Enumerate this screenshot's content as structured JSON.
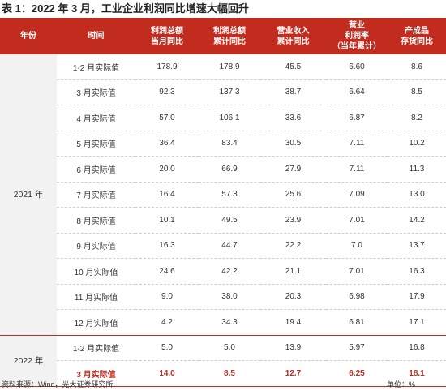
{
  "title": "表 1：2022 年 3 月，工业企业利润同比增速大幅回升",
  "headers": [
    "年份",
    "时间",
    "利润总额\n当月同比",
    "利润总额\n累计同比",
    "营业收入\n累计同比",
    "营业\n利润率\n（当年累计）",
    "产成品\n存货同比"
  ],
  "groups": [
    {
      "year": "2021 年",
      "rows": [
        [
          "1-2 月实际值",
          "178.9",
          "178.9",
          "45.5",
          "6.60",
          "8.6"
        ],
        [
          "3 月实际值",
          "92.3",
          "137.3",
          "38.7",
          "6.64",
          "8.5"
        ],
        [
          "4 月实际值",
          "57.0",
          "106.1",
          "33.6",
          "6.87",
          "8.2"
        ],
        [
          "5 月实际值",
          "36.4",
          "83.4",
          "30.5",
          "7.11",
          "10.2"
        ],
        [
          "6 月实际值",
          "20.0",
          "66.9",
          "27.9",
          "7.11",
          "11.3"
        ],
        [
          "7 月实际值",
          "16.4",
          "57.3",
          "25.6",
          "7.09",
          "13.0"
        ],
        [
          "8 月实际值",
          "10.1",
          "49.5",
          "23.9",
          "7.01",
          "14.2"
        ],
        [
          "9 月实际值",
          "16.3",
          "44.7",
          "22.2",
          "7.0",
          "13.7"
        ],
        [
          "10 月实际值",
          "24.6",
          "42.2",
          "21.1",
          "7.01",
          "16.3"
        ],
        [
          "11 月实际值",
          "9.0",
          "38.0",
          "20.3",
          "6.98",
          "17.9"
        ],
        [
          "12 月实际值",
          "4.2",
          "34.3",
          "19.4",
          "6.81",
          "17.1"
        ]
      ]
    },
    {
      "year": "2022 年",
      "rows": [
        [
          "1-2 月实际值",
          "5.0",
          "5.0",
          "13.9",
          "5.97",
          "16.8"
        ],
        [
          "3 月实际值",
          "14.0",
          "8.5",
          "12.7",
          "6.25",
          "18.1"
        ]
      ]
    }
  ],
  "highlight_color": "#c12c1f",
  "header_bg": "#c12c1f",
  "footer": {
    "source": "资料来源：Wind，光大证券研究所",
    "unit": "单位：%"
  }
}
